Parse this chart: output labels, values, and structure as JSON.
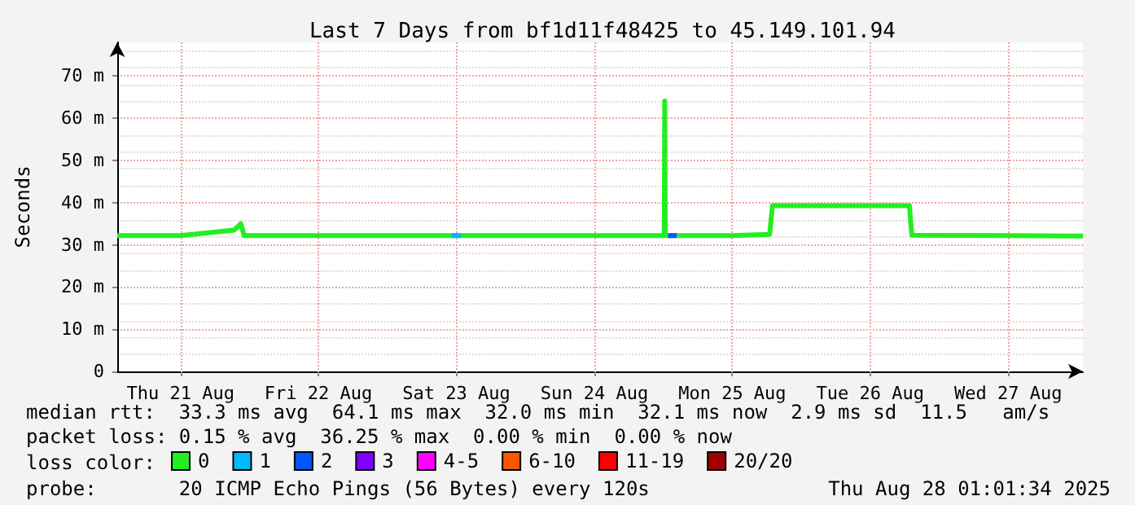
{
  "chart_data": {
    "type": "line",
    "title": "Last 7 Days from bf1d11f48425 to 45.149.101.94",
    "ylabel": "Seconds",
    "legend_title": "loss color:",
    "xlim": [
      "2025-08-21T01:00",
      "2025-08-28T01:00"
    ],
    "xticks": [
      {
        "value": "2025-08-21T12:00",
        "label": "Thu 21 Aug"
      },
      {
        "value": "2025-08-22T12:00",
        "label": "Fri 22 Aug"
      },
      {
        "value": "2025-08-23T12:00",
        "label": "Sat 23 Aug"
      },
      {
        "value": "2025-08-24T12:00",
        "label": "Sun 24 Aug"
      },
      {
        "value": "2025-08-25T12:00",
        "label": "Mon 25 Aug"
      },
      {
        "value": "2025-08-26T12:00",
        "label": "Tue 26 Aug"
      },
      {
        "value": "2025-08-27T12:00",
        "label": "Wed 27 Aug"
      }
    ],
    "ylim": [
      0,
      78
    ],
    "yticks": [
      0,
      {
        "value": 10,
        "label": "10 m"
      },
      {
        "value": 20,
        "label": "20 m"
      },
      {
        "value": 30,
        "label": "30 m"
      },
      {
        "value": 40,
        "label": "40 m"
      },
      {
        "value": 50,
        "label": "50 m"
      },
      {
        "value": 60,
        "label": "60 m"
      },
      {
        "value": 70,
        "label": "70 m"
      }
    ],
    "grid": true,
    "legend": "bottom",
    "marker": "none",
    "line_style": "solid",
    "series": [
      {
        "name": "0",
        "color": "#22ee22",
        "x": [
          "2025-08-21T01:00",
          "2025-08-21T12:00",
          "2025-08-21T21:20",
          "2025-08-21T22:30",
          "2025-08-21T23:05",
          "2025-08-22T12:00",
          "2025-08-23T12:00",
          "2025-08-24T12:00",
          "2025-08-25T00:10",
          "2025-08-25T00:15",
          "2025-08-25T00:20",
          "2025-08-25T12:00",
          "2025-08-25T18:30",
          "2025-08-25T19:00",
          "2025-08-26T12:00",
          "2025-08-26T18:50",
          "2025-08-26T19:00",
          "2025-08-26T19:15",
          "2025-08-27T12:00",
          "2025-08-28T01:00"
        ],
        "values": [
          32.2,
          32.2,
          33.5,
          35,
          32.2,
          32.2,
          32.2,
          32.2,
          32.2,
          64.1,
          32.2,
          32.2,
          32.5,
          39.3,
          39.3,
          39.3,
          36,
          32.3,
          32.2,
          32.1
        ]
      },
      {
        "name": "1",
        "color": "#00b8ff",
        "x": [
          "2025-08-23T11:10",
          "2025-08-23T12:50"
        ],
        "values": [
          32.2,
          32.2
        ]
      },
      {
        "name": "2",
        "color": "#0059ff",
        "x": [
          "2025-08-25T00:50",
          "2025-08-25T02:20"
        ],
        "values": [
          32.2,
          32.2
        ]
      },
      {
        "name": "3",
        "color": "#7e00ff"
      },
      {
        "name": "4-5",
        "color": "#ff00ff"
      },
      {
        "name": "6-10",
        "color": "#ff5500"
      },
      {
        "name": "11-19",
        "color": "#ff0000"
      },
      {
        "name": "20/20",
        "color": "#a10000"
      }
    ],
    "annotations": [
      "median rtt:  33.3 ms avg  64.1 ms max  32.0 ms min  32.1 ms now  2.9 ms sd  11.5   am/s",
      "packet loss: 0.15 % avg  36.25 % max  0.00 % min  0.00 % now",
      "probe:       20 ICMP Echo Pings (56 Bytes) every 120s",
      "Thu Aug 28 01:01:34 2025"
    ]
  }
}
